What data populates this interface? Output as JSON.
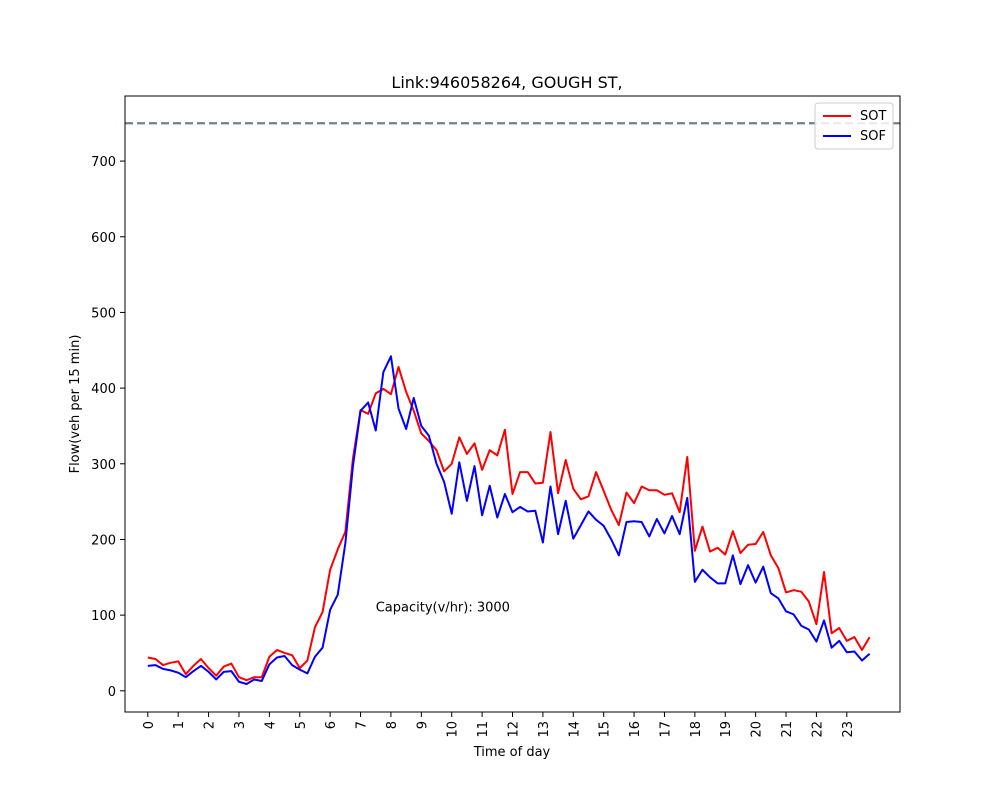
{
  "chart_data": {
    "type": "line",
    "title": "Link:946058264, GOUGH ST,",
    "xlabel": "Time of day",
    "ylabel": "Flow(veh per 15 min)",
    "xlim": [
      -0.75,
      24.75
    ],
    "ylim": [
      -28,
      786
    ],
    "xticks": [
      0,
      1,
      2,
      3,
      4,
      5,
      6,
      7,
      8,
      9,
      10,
      11,
      12,
      13,
      14,
      15,
      16,
      17,
      18,
      19,
      20,
      21,
      22,
      23
    ],
    "xtick_labels": [
      "0",
      "1",
      "2",
      "3",
      "4",
      "5",
      "6",
      "7",
      "8",
      "9",
      "10",
      "11",
      "12",
      "13",
      "14",
      "15",
      "16",
      "17",
      "18",
      "19",
      "20",
      "21",
      "22",
      "23"
    ],
    "yticks": [
      0,
      100,
      200,
      300,
      400,
      500,
      600,
      700
    ],
    "ytick_labels": [
      "0",
      "100",
      "200",
      "300",
      "400",
      "500",
      "600",
      "700"
    ],
    "x_step": 0.25,
    "grid": false,
    "legend_position": "top-right",
    "capacity_line": {
      "value": 750,
      "style": "dashed",
      "color": "#708090"
    },
    "annotation": {
      "text": "Capacity(v/hr): 3000",
      "x": 7.5,
      "y": 105
    },
    "series": [
      {
        "name": "SOT",
        "color": "#ff0000",
        "values": [
          44,
          42,
          34,
          37,
          39,
          22,
          33,
          42,
          30,
          20,
          32,
          36,
          18,
          14,
          18,
          18,
          45,
          54,
          50,
          47,
          30,
          40,
          84,
          104,
          160,
          187,
          210,
          307,
          371,
          366,
          393,
          399,
          392,
          428,
          395,
          370,
          340,
          330,
          318,
          290,
          300,
          335,
          313,
          327,
          292,
          318,
          311,
          345,
          260,
          289,
          289,
          274,
          275,
          342,
          261,
          305,
          267,
          253,
          257,
          289,
          264,
          239,
          219,
          262,
          248,
          270,
          265,
          265,
          259,
          261,
          236,
          309,
          185,
          217,
          184,
          189,
          180,
          211,
          182,
          193,
          194,
          210,
          179,
          162,
          130,
          133,
          131,
          118,
          88,
          157,
          76,
          83,
          66,
          71,
          54,
          71
        ]
      },
      {
        "name": "SOF",
        "color": "#0000ff",
        "values": [
          33,
          34,
          29,
          27,
          24,
          18,
          26,
          33,
          25,
          15,
          25,
          26,
          12,
          9,
          15,
          13,
          35,
          44,
          46,
          34,
          28,
          23,
          45,
          57,
          107,
          127,
          195,
          297,
          370,
          381,
          344,
          421,
          442,
          373,
          346,
          387,
          350,
          337,
          300,
          276,
          234,
          302,
          251,
          297,
          232,
          271,
          229,
          260,
          236,
          243,
          237,
          238,
          196,
          270,
          207,
          251,
          201,
          219,
          237,
          226,
          218,
          200,
          179,
          223,
          224,
          223,
          204,
          227,
          208,
          231,
          207,
          255,
          144,
          160,
          150,
          142,
          142,
          179,
          141,
          166,
          143,
          164,
          129,
          122,
          105,
          101,
          86,
          81,
          65,
          93,
          57,
          66,
          51,
          52,
          40,
          49
        ]
      }
    ]
  }
}
